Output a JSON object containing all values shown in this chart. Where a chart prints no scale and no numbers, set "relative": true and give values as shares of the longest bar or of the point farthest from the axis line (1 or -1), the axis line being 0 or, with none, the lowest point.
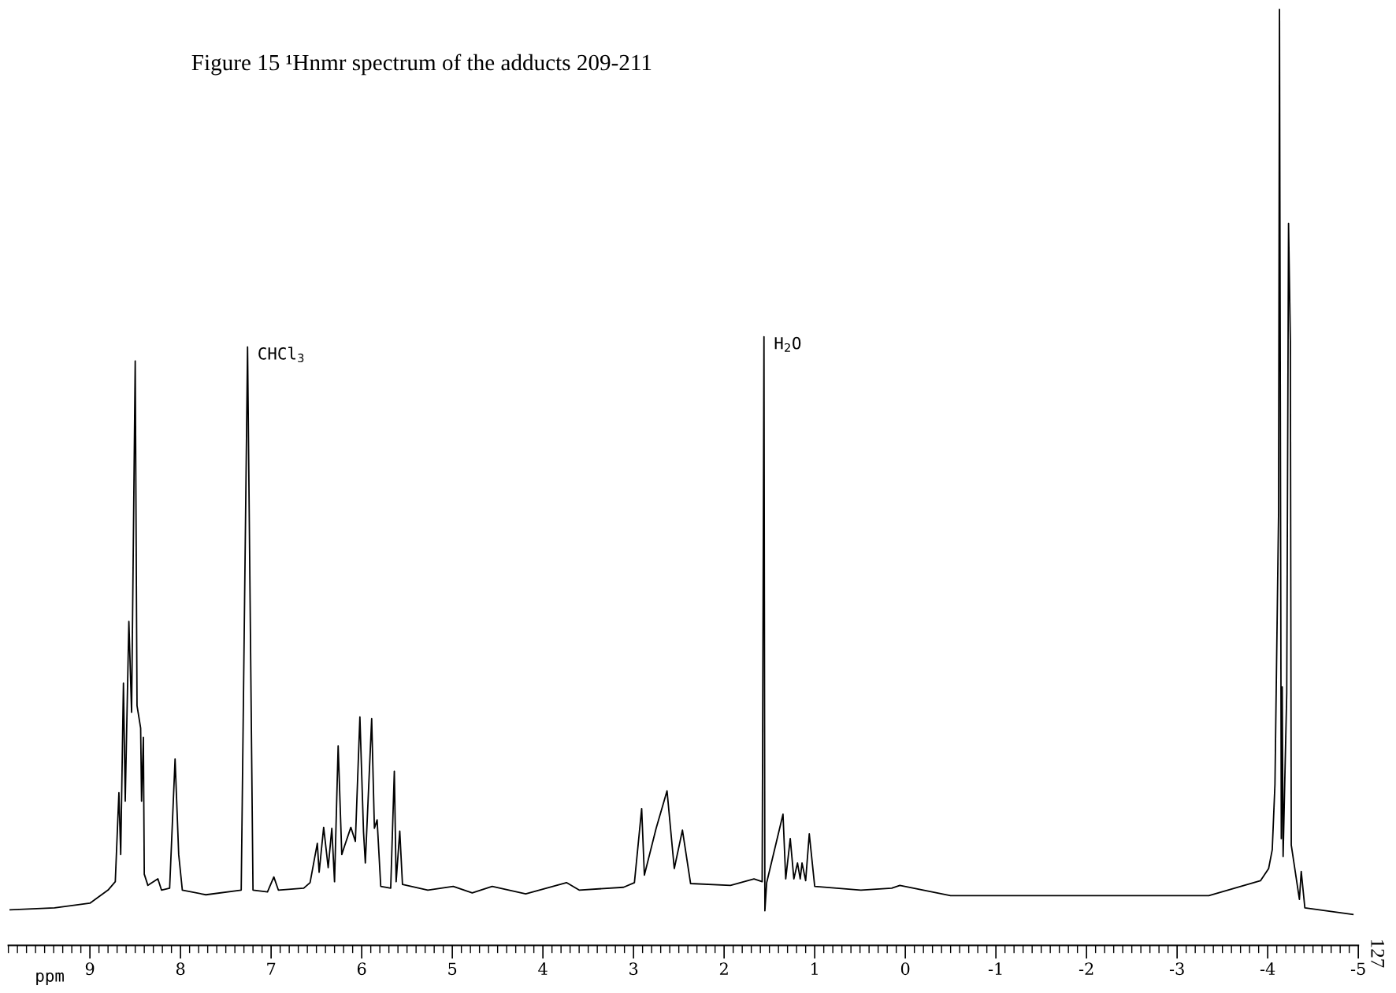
{
  "chart_data": {
    "type": "line",
    "title": "Figure 15 ¹Hnmr spectrum of the adducts 209-211",
    "xlabel": "ppm",
    "relative": true,
    "grid": false,
    "marker": "none",
    "line_style": "solid",
    "xlim": [
      9.9,
      -5.0
    ],
    "xticks": [
      9,
      8,
      7,
      6,
      5,
      4,
      3,
      2,
      1,
      0,
      -1,
      -2,
      -3,
      -4,
      -5
    ],
    "annotations": [
      {
        "text": "CHCl$_{3}$",
        "x": 7.26,
        "y": 0.639
      },
      {
        "text": "H$_{2}$O",
        "x": 1.56,
        "y": 0.65
      },
      "127"
    ],
    "series": [
      {
        "color": "#000000",
        "x": [
          9.88,
          9.39,
          9.0,
          8.8,
          8.72,
          8.68,
          8.66,
          8.63,
          8.61,
          8.57,
          8.54,
          8.5,
          8.48,
          8.44,
          8.43,
          8.41,
          8.4,
          8.36,
          8.25,
          8.21,
          8.12,
          8.06,
          8.02,
          7.98,
          7.72,
          7.33,
          7.26,
          7.2,
          7.04,
          6.97,
          6.92,
          6.64,
          6.57,
          6.49,
          6.47,
          6.42,
          6.37,
          6.33,
          6.3,
          6.26,
          6.22,
          6.19,
          6.12,
          6.07,
          6.02,
          5.98,
          5.96,
          5.89,
          5.86,
          5.83,
          5.79,
          5.68,
          5.64,
          5.62,
          5.58,
          5.55,
          5.27,
          4.99,
          4.78,
          4.56,
          4.19,
          3.74,
          3.6,
          3.11,
          2.99,
          2.91,
          2.88,
          2.75,
          2.63,
          2.55,
          2.46,
          2.37,
          1.93,
          1.67,
          1.58,
          1.56,
          1.55,
          1.53,
          1.35,
          1.32,
          1.27,
          1.23,
          1.19,
          1.16,
          1.14,
          1.1,
          1.06,
          1.0,
          0.49,
          0.15,
          0.06,
          -0.5,
          -3.35,
          -3.92,
          -4.01,
          -4.05,
          -4.08,
          -4.12,
          -4.13,
          -4.15,
          -4.16,
          -4.17,
          -4.21,
          -4.23,
          -4.25,
          -4.26,
          -4.35,
          -4.37,
          -4.41,
          -4.94
        ],
        "values": [
          0.038,
          0.04,
          0.045,
          0.059,
          0.068,
          0.163,
          0.097,
          0.28,
          0.154,
          0.346,
          0.249,
          0.624,
          0.256,
          0.232,
          0.154,
          0.222,
          0.076,
          0.064,
          0.071,
          0.059,
          0.061,
          0.199,
          0.097,
          0.059,
          0.054,
          0.059,
          0.639,
          0.059,
          0.057,
          0.073,
          0.059,
          0.061,
          0.067,
          0.109,
          0.078,
          0.126,
          0.083,
          0.125,
          0.068,
          0.213,
          0.097,
          0.106,
          0.126,
          0.111,
          0.244,
          0.121,
          0.088,
          0.242,
          0.125,
          0.134,
          0.063,
          0.061,
          0.186,
          0.068,
          0.122,
          0.065,
          0.059,
          0.063,
          0.056,
          0.063,
          0.055,
          0.067,
          0.059,
          0.062,
          0.067,
          0.146,
          0.075,
          0.125,
          0.165,
          0.082,
          0.123,
          0.066,
          0.064,
          0.071,
          0.068,
          0.65,
          0.037,
          0.067,
          0.14,
          0.071,
          0.114,
          0.071,
          0.088,
          0.071,
          0.088,
          0.069,
          0.119,
          0.063,
          0.059,
          0.061,
          0.064,
          0.053,
          0.053,
          0.069,
          0.082,
          0.102,
          0.172,
          0.462,
          1.0,
          0.114,
          0.276,
          0.095,
          0.269,
          0.771,
          0.645,
          0.107,
          0.049,
          0.079,
          0.04,
          0.033
        ]
      }
    ]
  }
}
